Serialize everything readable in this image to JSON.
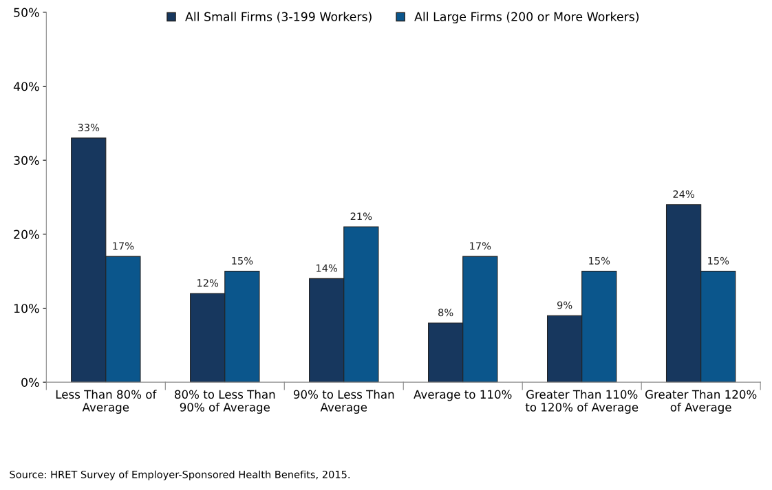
{
  "chart_data": {
    "type": "bar",
    "categories": [
      "Less Than 80% of\nAverage",
      "80% to Less Than\n90% of Average",
      "90% to Less Than\nAverage",
      "Average to 110%",
      "Greater Than 110%\nto 120% of Average",
      "Greater Than 120%\nof Average"
    ],
    "series": [
      {
        "name": "All Small Firms (3-199 Workers)",
        "color": "#17375e",
        "values": [
          33,
          12,
          14,
          8,
          9,
          24
        ],
        "value_labels": [
          "33%",
          "12%",
          "14%",
          "8%",
          "9%",
          "24%"
        ]
      },
      {
        "name": "All Large Firms (200 or More Workers)",
        "color": "#0b568c",
        "values": [
          17,
          15,
          21,
          17,
          15,
          15
        ],
        "value_labels": [
          "17%",
          "15%",
          "21%",
          "17%",
          "15%",
          "15%"
        ]
      }
    ],
    "ylim": [
      0,
      50
    ],
    "yticks": [
      {
        "value": 0,
        "label": "0%"
      },
      {
        "value": 10,
        "label": "10%"
      },
      {
        "value": 20,
        "label": "20%"
      },
      {
        "value": 30,
        "label": "30%"
      },
      {
        "value": 40,
        "label": "40%"
      },
      {
        "value": 50,
        "label": "50%"
      }
    ],
    "grid": false,
    "legend": "top",
    "annotations": [
      "Source: HRET Survey of Employer-Sponsored Health Benefits, 2015."
    ]
  }
}
